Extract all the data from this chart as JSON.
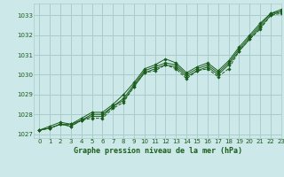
{
  "title": "Graphe pression niveau de la mer (hPa)",
  "background_color": "#cce8e8",
  "grid_color": "#aacccc",
  "line_color": "#1a5c1a",
  "xlim": [
    -0.5,
    23
  ],
  "ylim": [
    1026.8,
    1033.6
  ],
  "yticks": [
    1027,
    1028,
    1029,
    1030,
    1031,
    1032,
    1033
  ],
  "xticks": [
    0,
    1,
    2,
    3,
    4,
    5,
    6,
    7,
    8,
    9,
    10,
    11,
    12,
    13,
    14,
    15,
    16,
    17,
    18,
    19,
    20,
    21,
    22,
    23
  ],
  "series": [
    [
      1027.2,
      1027.3,
      1027.5,
      1027.4,
      1027.7,
      1027.8,
      1027.8,
      1028.3,
      1028.6,
      1029.4,
      1030.1,
      1030.2,
      1030.5,
      1030.3,
      1029.8,
      1030.2,
      1030.3,
      1029.9,
      1030.3,
      1031.2,
      1031.8,
      1032.3,
      1033.0,
      1033.1
    ],
    [
      1027.2,
      1027.3,
      1027.5,
      1027.4,
      1027.7,
      1027.9,
      1027.9,
      1028.4,
      1028.7,
      1029.4,
      1030.1,
      1030.3,
      1030.5,
      1030.4,
      1029.9,
      1030.2,
      1030.4,
      1030.0,
      1030.5,
      1031.2,
      1031.8,
      1032.4,
      1033.0,
      1033.2
    ],
    [
      1027.2,
      1027.3,
      1027.5,
      1027.5,
      1027.7,
      1028.0,
      1028.0,
      1028.4,
      1028.8,
      1029.5,
      1030.2,
      1030.4,
      1030.6,
      1030.5,
      1030.0,
      1030.3,
      1030.5,
      1030.1,
      1030.6,
      1031.3,
      1031.9,
      1032.5,
      1033.1,
      1033.2
    ],
    [
      1027.2,
      1027.4,
      1027.6,
      1027.5,
      1027.8,
      1028.1,
      1028.1,
      1028.5,
      1029.0,
      1029.6,
      1030.3,
      1030.5,
      1030.8,
      1030.6,
      1030.1,
      1030.4,
      1030.6,
      1030.2,
      1030.7,
      1031.4,
      1032.0,
      1032.6,
      1033.1,
      1033.3
    ]
  ]
}
